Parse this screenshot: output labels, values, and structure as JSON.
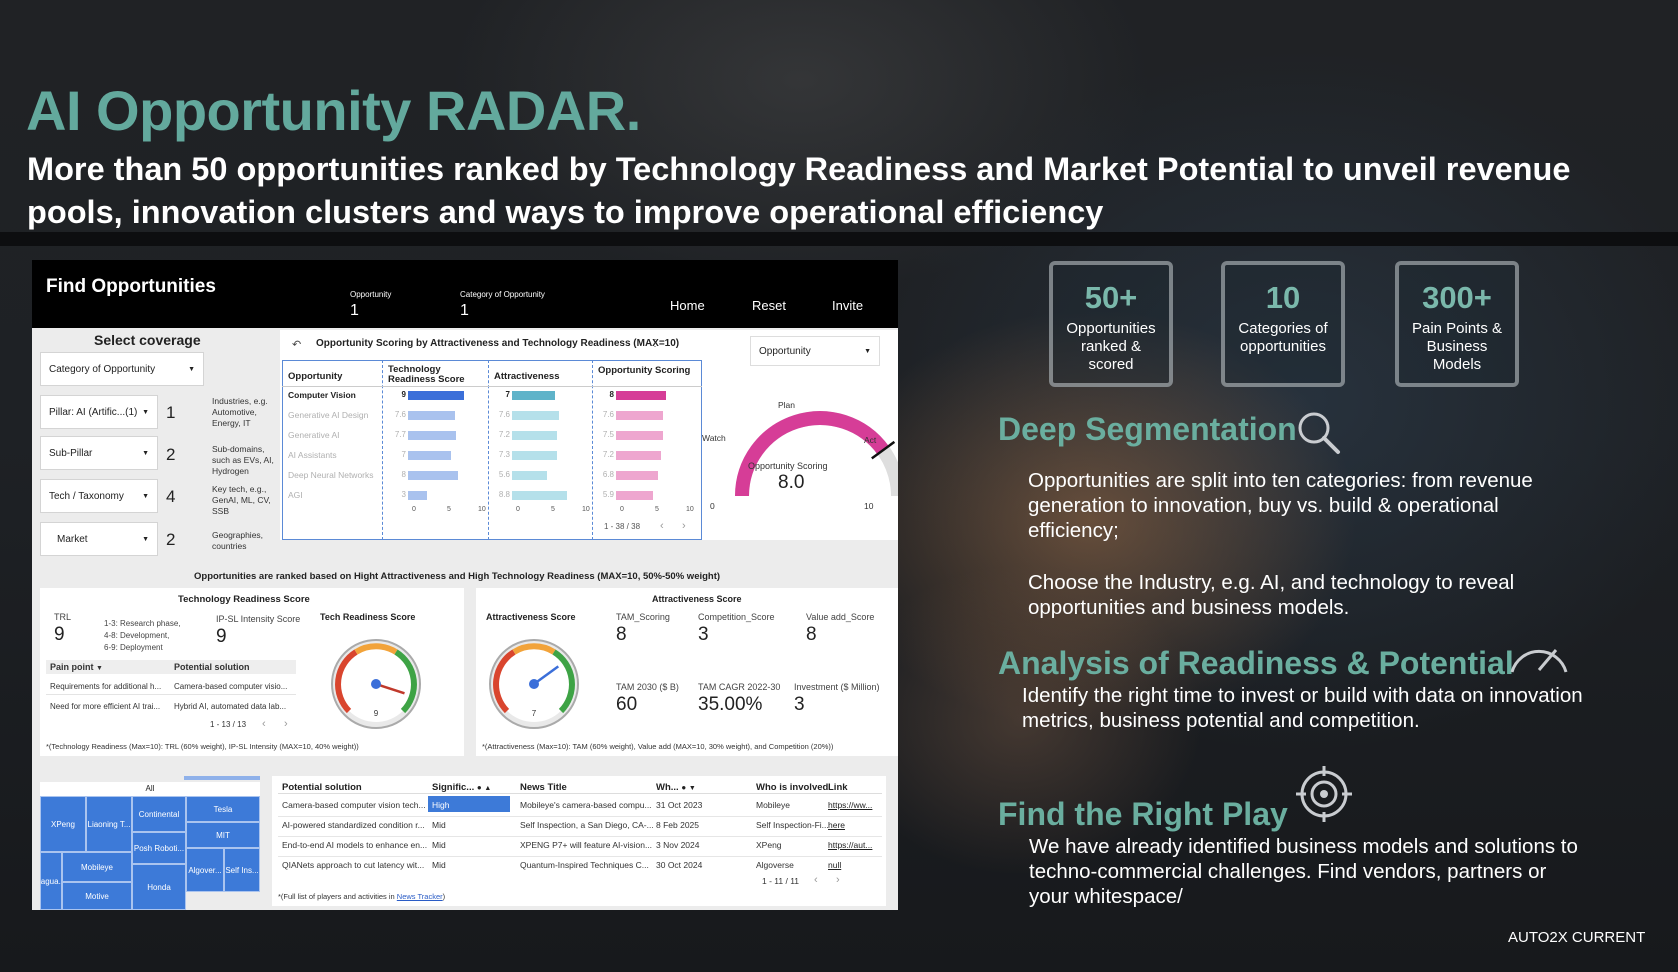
{
  "header": {
    "title": "AI Opportunity RADAR.",
    "subtitle": "More than 50 opportunities ranked by Technology Readiness and Market Potential to unveil revenue pools, innovation clusters and ways to improve operational efficiency"
  },
  "dashboard": {
    "title": "Find Opportunities",
    "stats": [
      {
        "label": "Opportunity",
        "value": "1"
      },
      {
        "label": "Category of Opportunity",
        "value": "1"
      }
    ],
    "nav": [
      "Home",
      "Reset",
      "Invite"
    ],
    "coverage": {
      "title": "Select coverage",
      "category_select": "Category of Opportunity",
      "filters": [
        {
          "label": "Pillar: AI (Artific...(1)",
          "count": "1",
          "note": "Industries, e.g. Automotive, Energy, IT"
        },
        {
          "label": "Sub-Pillar",
          "count": "2",
          "note": "Sub-domains, such as EVs, AI, Hydrogen"
        },
        {
          "label": "Tech / Taxonomy",
          "count": "4",
          "note": "Key tech, e.g., GenAI, ML, CV, SSB"
        },
        {
          "label": "Market",
          "count": "2",
          "note": "Geographies, countries"
        }
      ]
    },
    "scoring_table": {
      "title": "Opportunity Scoring by Attractiveness and Technology Readiness (MAX=10)",
      "headers": [
        "Opportunity",
        "Technology Readiness Score",
        "Attractiveness",
        "Opportunity Scoring"
      ],
      "rows": [
        {
          "name": "Computer Vision",
          "trl": 9,
          "attr": 7,
          "score": 8
        },
        {
          "name": "Generative AI Design",
          "trl": 7.6,
          "attr": 7.6,
          "score": 7.6
        },
        {
          "name": "Generative AI",
          "trl": 7.7,
          "attr": 7.2,
          "score": 7.5
        },
        {
          "name": "AI Assistants",
          "trl": 7,
          "attr": 7.3,
          "score": 7.2
        },
        {
          "name": "Deep Neural Networks",
          "trl": 8,
          "attr": 5.6,
          "score": 6.8
        },
        {
          "name": "AGI",
          "trl": 3,
          "attr": 8.8,
          "score": 5.9
        }
      ],
      "axis_ticks": [
        "0",
        "5",
        "10"
      ],
      "pagination": "1 - 38 / 38",
      "colors": {
        "trl": "#3b6fd9",
        "trl_light": "#a9c2ee",
        "attr": "#5fb3c9",
        "attr_light": "#b5e0ea",
        "score": "#d63d97",
        "score_light": "#eea6cf"
      }
    },
    "gauge": {
      "dropdown": "Opportunity",
      "label_plan": "Plan",
      "label_watch": "Watch",
      "label_act": "Act",
      "title": "Opportunity Scoring",
      "value": "8.0",
      "value_num": 8.0,
      "min": "0",
      "max": "10"
    },
    "ranking_note": "Opportunities are ranked based on Hight Attractiveness and High Technology Readiness (MAX=10, 50%-50% weight)",
    "trl_panel": {
      "title": "Technology Readiness Score",
      "trl_label": "TRL",
      "trl_value": "9",
      "phases": [
        "1-3: Research phase,",
        "4-8: Development,",
        "6-9: Deployment"
      ],
      "ipsl_label": "IP-SL Intensity Score",
      "ipsl_value": "9",
      "gauge_title": "Tech Readiness Score",
      "gauge_value": "9",
      "gauge_value_num": 9,
      "col_headers": [
        "Pain point",
        "Potential solution"
      ],
      "rows": [
        [
          "Requirements for additional h...",
          "Camera-based computer visio..."
        ],
        [
          "Need for more efficient AI trai...",
          "Hybrid AI, automated data lab..."
        ]
      ],
      "pagination": "1 - 13 / 13",
      "footnote": "*(Technology Readiness (Max=10): TRL (60% weight), IP-SL Intensity (MAX=10, 40% weight))"
    },
    "attr_panel": {
      "title": "Attractiveness Score",
      "gauge_title": "Attractiveness Score",
      "gauge_value": "7",
      "gauge_value_num": 7,
      "metrics": [
        {
          "label": "TAM_Scoring",
          "value": "8"
        },
        {
          "label": "Competition_Score",
          "value": "3"
        },
        {
          "label": "Value add_Score",
          "value": "8"
        },
        {
          "label": "TAM 2030 ($ B)",
          "value": "60"
        },
        {
          "label": "TAM CAGR 2022-30",
          "value": "35.00%"
        },
        {
          "label": "Investment ($ Million)",
          "value": "3"
        }
      ],
      "footnote": "*(Attractiveness (Max=10): TAM (60% weight), Value add (MAX=10, 30% weight), and Competition (20%))"
    },
    "treemap": {
      "title": "All",
      "cells": [
        "XPeng",
        "Liaoning T...",
        "Continental",
        "Tesla",
        "MIT",
        "Mobileye",
        "Posh Roboti...",
        "Jagua...",
        "Algover...",
        "Self Ins...",
        "Motive",
        "Honda"
      ]
    },
    "news_table": {
      "headers": [
        "Potential solution",
        "Signific...",
        "News Title",
        "Wh...",
        "Who is involved",
        "Link"
      ],
      "rows": [
        [
          "Camera-based computer vision tech...",
          "High",
          "Mobileye's camera-based compu...",
          "31 Oct 2023",
          "Mobileye",
          "https://ww..."
        ],
        [
          "AI-powered standardized condition r...",
          "Mid",
          "Self Inspection, a San Diego, CA-...",
          "8 Feb 2025",
          "Self Inspection-Fi...",
          "here"
        ],
        [
          "End-to-end AI models to enhance en...",
          "Mid",
          "XPENG P7+ will feature AI-vision...",
          "3 Nov 2024",
          "XPeng",
          "https://aut..."
        ],
        [
          "QIANets approach to cut latency wit...",
          "Mid",
          "Quantum-Inspired Techniques C...",
          "30 Oct 2024",
          "Algoverse",
          "null"
        ]
      ],
      "pagination": "1 - 11 / 11",
      "footnote_prefix": "*(Full list of players and activities in ",
      "footnote_link": "News Tracker",
      "footnote_suffix": ")"
    }
  },
  "stats": [
    {
      "value": "50+",
      "label": "Opportunities ranked & scored"
    },
    {
      "value": "10",
      "label": "Categories of opportunities"
    },
    {
      "value": "300+",
      "label": "Pain Points & Business Models"
    }
  ],
  "sections": [
    {
      "heading": "Deep Segmentation",
      "paragraphs": [
        "Opportunities are split into ten categories: from revenue generation to innovation, buy vs. build & operational efficiency;",
        "Choose the Industry, e.g. AI, and technology to reveal opportunities and business models."
      ]
    },
    {
      "heading": "Analysis of Readiness & Potential",
      "paragraphs": [
        "Identify the right time to invest or build with data on innovation metrics, business potential and competition."
      ]
    },
    {
      "heading": "Find the Right Play",
      "paragraphs": [
        "We have already identified business models and solutions to techno-commercial challenges. Find vendors, partners or your whitespace/"
      ]
    }
  ],
  "footer": "AUTO2X CURRENT"
}
